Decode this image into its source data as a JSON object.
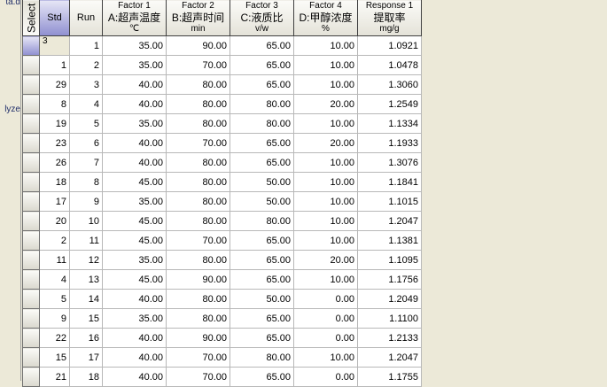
{
  "left_panel": {
    "items": [
      "ta.d",
      "lyze"
    ]
  },
  "headers": {
    "select": "Select",
    "std": "Std",
    "run": "Run",
    "factors": [
      {
        "title": "Factor 1",
        "name": "A:超声温度",
        "unit": "℃"
      },
      {
        "title": "Factor 2",
        "name": "B:超声时间",
        "unit": "min"
      },
      {
        "title": "Factor 3",
        "name": "C:液质比",
        "unit": "v/w"
      },
      {
        "title": "Factor 4",
        "name": "D:甲醇浓度",
        "unit": "%"
      },
      {
        "title": "Response 1",
        "name": "提取率",
        "unit": "mg/g"
      }
    ]
  },
  "rows": [
    [
      "3",
      "1",
      "35.00",
      "90.00",
      "65.00",
      "10.00",
      "1.0921"
    ],
    [
      "1",
      "2",
      "35.00",
      "70.00",
      "65.00",
      "10.00",
      "1.0478"
    ],
    [
      "29",
      "3",
      "40.00",
      "80.00",
      "65.00",
      "10.00",
      "1.3060"
    ],
    [
      "8",
      "4",
      "40.00",
      "80.00",
      "80.00",
      "20.00",
      "1.2549"
    ],
    [
      "19",
      "5",
      "35.00",
      "80.00",
      "80.00",
      "10.00",
      "1.1334"
    ],
    [
      "23",
      "6",
      "40.00",
      "70.00",
      "65.00",
      "20.00",
      "1.1933"
    ],
    [
      "26",
      "7",
      "40.00",
      "80.00",
      "65.00",
      "10.00",
      "1.3076"
    ],
    [
      "18",
      "8",
      "45.00",
      "80.00",
      "50.00",
      "10.00",
      "1.1841"
    ],
    [
      "17",
      "9",
      "35.00",
      "80.00",
      "50.00",
      "10.00",
      "1.1015"
    ],
    [
      "20",
      "10",
      "45.00",
      "80.00",
      "80.00",
      "10.00",
      "1.2047"
    ],
    [
      "2",
      "11",
      "45.00",
      "70.00",
      "65.00",
      "10.00",
      "1.1381"
    ],
    [
      "11",
      "12",
      "35.00",
      "80.00",
      "65.00",
      "20.00",
      "1.1095"
    ],
    [
      "4",
      "13",
      "45.00",
      "90.00",
      "65.00",
      "10.00",
      "1.1756"
    ],
    [
      "5",
      "14",
      "40.00",
      "80.00",
      "50.00",
      "0.00",
      "1.2049"
    ],
    [
      "9",
      "15",
      "35.00",
      "80.00",
      "65.00",
      "0.00",
      "1.1100"
    ],
    [
      "22",
      "16",
      "40.00",
      "90.00",
      "65.00",
      "0.00",
      "1.2133"
    ],
    [
      "15",
      "17",
      "40.00",
      "70.00",
      "80.00",
      "10.00",
      "1.2047"
    ],
    [
      "21",
      "18",
      "40.00",
      "70.00",
      "65.00",
      "0.00",
      "1.1755"
    ]
  ]
}
